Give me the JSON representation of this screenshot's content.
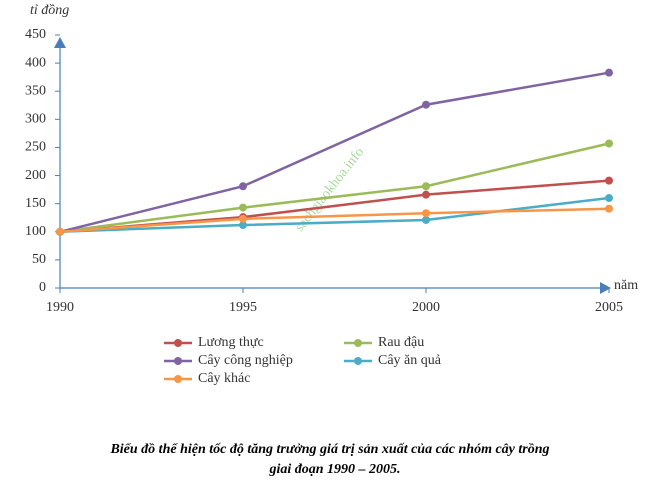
{
  "chart_data": {
    "type": "line",
    "y_label": "tỉ đồng",
    "x_label": "năm",
    "x": [
      1990,
      1995,
      2000,
      2005
    ],
    "xlim": [
      1990,
      2005
    ],
    "xticks": [
      1990,
      1995,
      2000,
      2005
    ],
    "ylim": [
      0,
      450
    ],
    "yticks": [
      0,
      50,
      100,
      150,
      200,
      250,
      300,
      350,
      400,
      450
    ],
    "series": [
      {
        "name": "Lương thực",
        "color": "#c0504d",
        "values": [
          100,
          126,
          166,
          191
        ]
      },
      {
        "name": "Rau đậu",
        "color": "#9bbb59",
        "values": [
          100,
          143,
          181,
          257
        ]
      },
      {
        "name": "Cây công nghiệp",
        "color": "#8064a2",
        "values": [
          100,
          181,
          326,
          383
        ]
      },
      {
        "name": "Cây ăn quả",
        "color": "#4bacc6",
        "values": [
          100,
          112,
          121,
          160
        ]
      },
      {
        "name": "Cây khác",
        "color": "#f79646",
        "values": [
          100,
          123,
          133,
          141
        ]
      }
    ],
    "watermark": "sachgiaokhoa.info",
    "caption": [
      "Biểu đồ thể hiện tốc độ tăng trưởng giá trị sản xuất của các nhóm cây trồng",
      "giai đoạn 1990 – 2005."
    ]
  }
}
